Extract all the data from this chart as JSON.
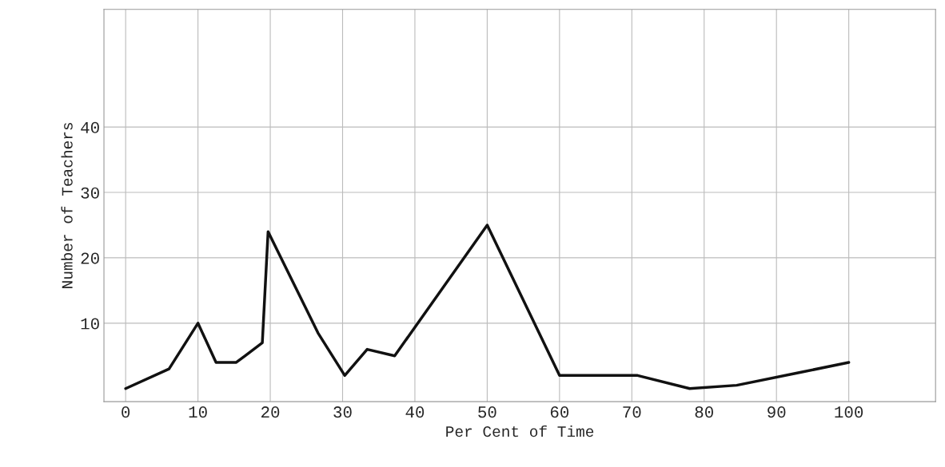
{
  "chart_data": {
    "type": "line",
    "xlabel": "Per Cent of Time",
    "ylabel": "Number of Teachers",
    "x": [
      0,
      6,
      10,
      12.5,
      15.3,
      16.5,
      18.9,
      19.7,
      26.6,
      30.3,
      33.4,
      37.2,
      50,
      60,
      70.8,
      78,
      84.5,
      93.4,
      100
    ],
    "values": [
      0,
      3,
      10,
      4,
      4,
      5,
      7,
      24,
      8.5,
      2,
      6,
      5,
      25,
      2,
      2,
      0,
      0.5,
      2.5,
      4
    ],
    "color": "#111111",
    "xlim": [
      -3,
      112
    ],
    "ylim": [
      -2,
      58
    ],
    "xticks": [
      0,
      10,
      20,
      30,
      40,
      50,
      60,
      70,
      80,
      90,
      100
    ],
    "yticks": [
      10,
      20,
      30,
      40
    ],
    "grid": true,
    "marker": "none",
    "line_style": "solid"
  }
}
